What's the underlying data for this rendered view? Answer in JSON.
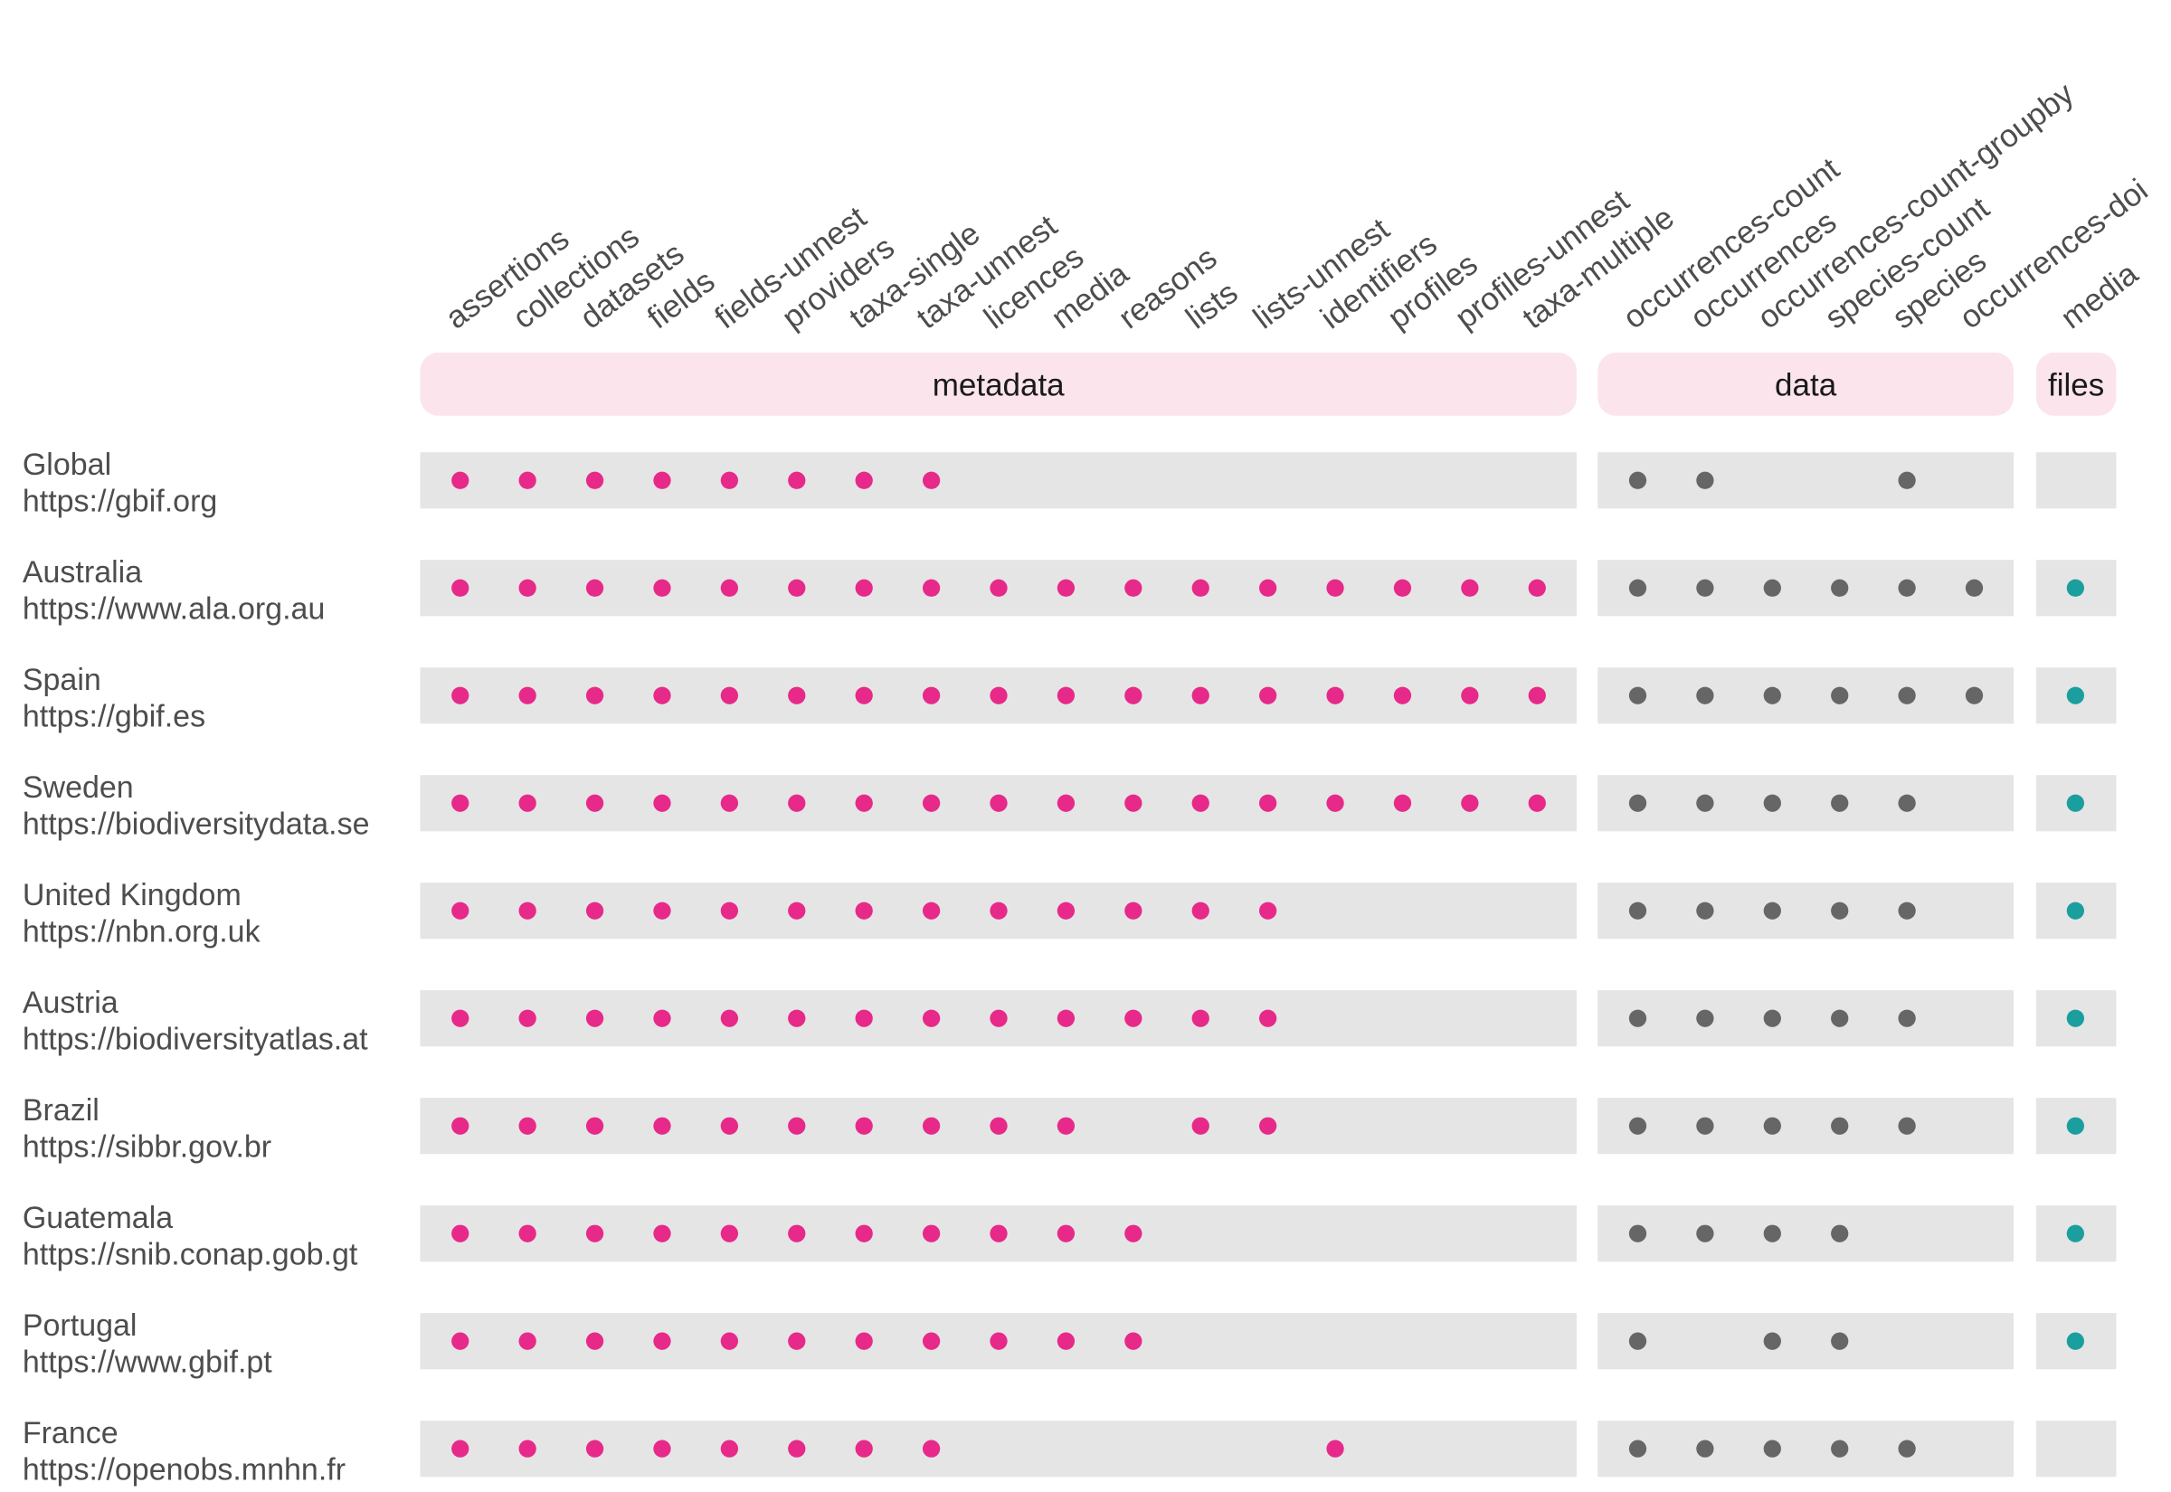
{
  "chart_data": {
    "type": "dot-matrix",
    "groups": [
      {
        "name": "metadata",
        "color": "#e7298a",
        "columns": [
          "assertions",
          "collections",
          "datasets",
          "fields",
          "fields-unnest",
          "providers",
          "taxa-single",
          "taxa-unnest",
          "licences",
          "media",
          "reasons",
          "lists",
          "lists-unnest",
          "identifiers",
          "profiles",
          "profiles-unnest",
          "taxa-multiple"
        ]
      },
      {
        "name": "data",
        "color": "#666666",
        "columns": [
          "occurrences-count",
          "occurrences",
          "occurrences-count-groupby",
          "species-count",
          "species",
          "occurrences-doi"
        ]
      },
      {
        "name": "files",
        "color": "#1b9e9e",
        "columns": [
          "media"
        ]
      }
    ],
    "rows": [
      {
        "name": "Global",
        "url": "https://gbif.org",
        "metadata": [
          1,
          1,
          1,
          1,
          1,
          1,
          1,
          1,
          0,
          0,
          0,
          0,
          0,
          0,
          0,
          0,
          0
        ],
        "data": [
          1,
          1,
          0,
          0,
          1,
          0
        ],
        "files": [
          0
        ]
      },
      {
        "name": "Australia",
        "url": "https://www.ala.org.au",
        "metadata": [
          1,
          1,
          1,
          1,
          1,
          1,
          1,
          1,
          1,
          1,
          1,
          1,
          1,
          1,
          1,
          1,
          1
        ],
        "data": [
          1,
          1,
          1,
          1,
          1,
          1
        ],
        "files": [
          1
        ]
      },
      {
        "name": "Spain",
        "url": "https://gbif.es",
        "metadata": [
          1,
          1,
          1,
          1,
          1,
          1,
          1,
          1,
          1,
          1,
          1,
          1,
          1,
          1,
          1,
          1,
          1
        ],
        "data": [
          1,
          1,
          1,
          1,
          1,
          1
        ],
        "files": [
          1
        ]
      },
      {
        "name": "Sweden",
        "url": "https://biodiversitydata.se",
        "metadata": [
          1,
          1,
          1,
          1,
          1,
          1,
          1,
          1,
          1,
          1,
          1,
          1,
          1,
          1,
          1,
          1,
          1
        ],
        "data": [
          1,
          1,
          1,
          1,
          1,
          0
        ],
        "files": [
          1
        ]
      },
      {
        "name": "United Kingdom",
        "url": "https://nbn.org.uk",
        "metadata": [
          1,
          1,
          1,
          1,
          1,
          1,
          1,
          1,
          1,
          1,
          1,
          1,
          1,
          0,
          0,
          0,
          0
        ],
        "data": [
          1,
          1,
          1,
          1,
          1,
          0
        ],
        "files": [
          1
        ]
      },
      {
        "name": "Austria",
        "url": "https://biodiversityatlas.at",
        "metadata": [
          1,
          1,
          1,
          1,
          1,
          1,
          1,
          1,
          1,
          1,
          1,
          1,
          1,
          0,
          0,
          0,
          0
        ],
        "data": [
          1,
          1,
          1,
          1,
          1,
          0
        ],
        "files": [
          1
        ]
      },
      {
        "name": "Brazil",
        "url": "https://sibbr.gov.br",
        "metadata": [
          1,
          1,
          1,
          1,
          1,
          1,
          1,
          1,
          1,
          1,
          0,
          1,
          1,
          0,
          0,
          0,
          0
        ],
        "data": [
          1,
          1,
          1,
          1,
          1,
          0
        ],
        "files": [
          1
        ]
      },
      {
        "name": "Guatemala",
        "url": "https://snib.conap.gob.gt",
        "metadata": [
          1,
          1,
          1,
          1,
          1,
          1,
          1,
          1,
          1,
          1,
          1,
          0,
          0,
          0,
          0,
          0,
          0
        ],
        "data": [
          1,
          1,
          1,
          1,
          0,
          0
        ],
        "files": [
          1
        ]
      },
      {
        "name": "Portugal",
        "url": "https://www.gbif.pt",
        "metadata": [
          1,
          1,
          1,
          1,
          1,
          1,
          1,
          1,
          1,
          1,
          1,
          0,
          0,
          0,
          0,
          0,
          0
        ],
        "data": [
          1,
          0,
          1,
          1,
          0,
          0
        ],
        "files": [
          1
        ]
      },
      {
        "name": "France",
        "url": "https://openobs.mnhn.fr",
        "metadata": [
          1,
          1,
          1,
          1,
          1,
          1,
          1,
          1,
          0,
          0,
          0,
          0,
          0,
          1,
          0,
          0,
          0
        ],
        "data": [
          1,
          1,
          1,
          1,
          1,
          0
        ],
        "files": [
          0
        ]
      }
    ],
    "group_header_color": "#fce4ec",
    "row_band_color": "#e5e5e5"
  }
}
